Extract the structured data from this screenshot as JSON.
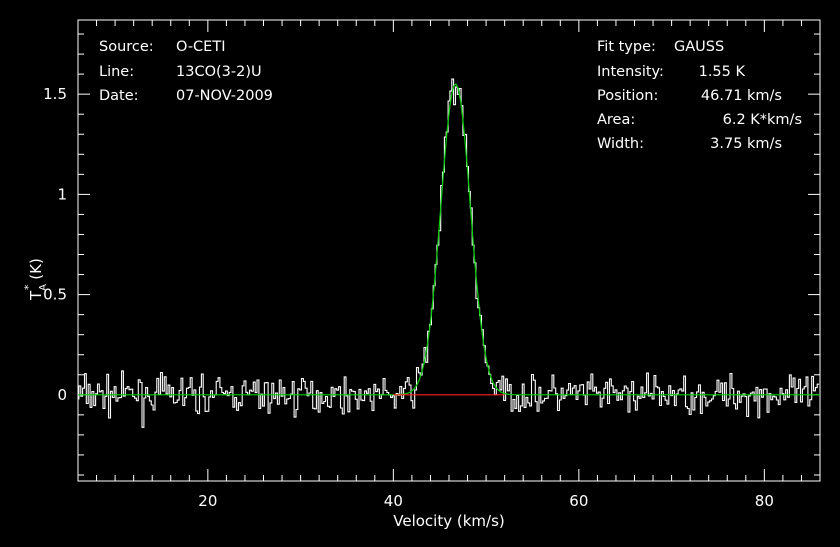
{
  "header": {
    "source_label": "Source:",
    "source_value": "O-CETI",
    "line_label": "Line:",
    "line_value": "13CO(3-2)U",
    "date_label": "Date:",
    "date_value": "07-NOV-2009"
  },
  "fit": {
    "type_label": "Fit type:",
    "type_value": "GAUSS",
    "intensity_label": "Intensity:",
    "intensity_value": "1.55 K",
    "position_label": "Position:",
    "position_value": "46.71 km/s",
    "area_label": "Area:",
    "area_value": "6.2 K*km/s",
    "width_label": "Width:",
    "width_value": "3.75 km/s"
  },
  "chart_data": {
    "type": "line",
    "xlabel": "Velocity (km/s)",
    "ylabel_main": "T",
    "ylabel_sub": "A",
    "ylabel_sup": "*",
    "ylabel_unit": " (K)",
    "xlim": [
      6,
      86
    ],
    "ylim": [
      -0.43,
      1.87
    ],
    "x_ticks": [
      20,
      40,
      60,
      80
    ],
    "y_ticks": [
      0,
      0.5,
      1,
      1.5
    ],
    "x_tick_labels": [
      "20",
      "40",
      "60",
      "80"
    ],
    "y_tick_labels": [
      "0",
      "0.5",
      "1",
      "1.5"
    ],
    "grid": false,
    "series": [
      {
        "kind": "spectrum",
        "color": "#ffffff",
        "x_start": 6,
        "x_step": 0.2,
        "peak_amplitude": 1.55,
        "peak_center": 46.71,
        "peak_fwhm": 3.75,
        "noise_rms": 0.09,
        "max_value": 1.8,
        "min_value": -0.32
      },
      {
        "kind": "gaussian-fit",
        "color": "#00cc00",
        "amplitude": 1.55,
        "center": 46.71,
        "fwhm": 3.75,
        "area": 6.2
      },
      {
        "kind": "baseline-segment",
        "color": "#ff2020",
        "x": [
          40,
          52
        ],
        "y": [
          0,
          0
        ]
      }
    ]
  }
}
